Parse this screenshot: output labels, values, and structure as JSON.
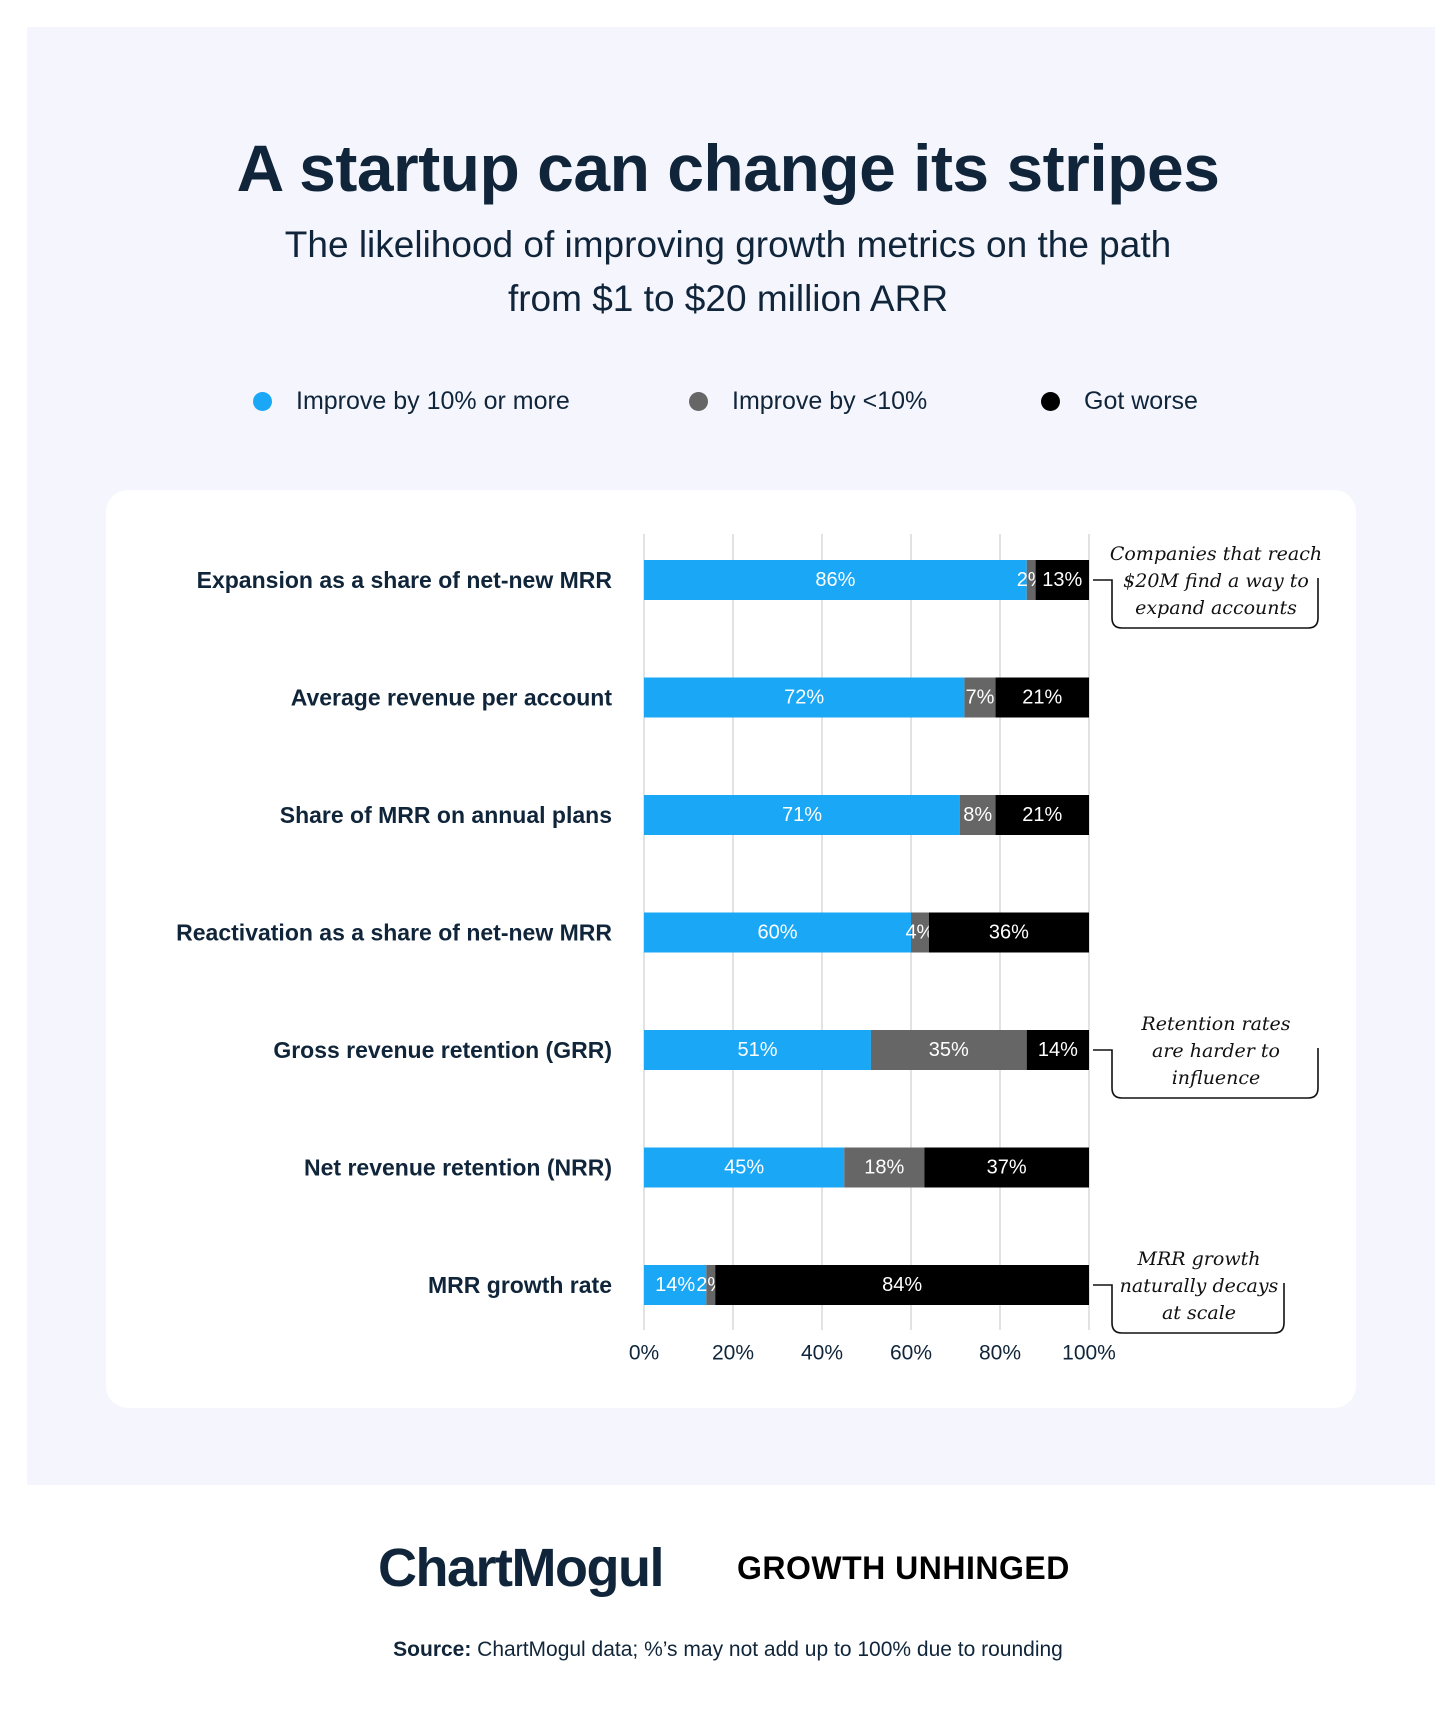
{
  "title": "A startup can change its stripes",
  "subtitle_line1": "The likelihood of improving growth metrics on the path",
  "subtitle_line2": "from $1 to $20 million ARR",
  "legend": [
    {
      "label": "Improve by 10% or more",
      "color": "#1aa7f6"
    },
    {
      "label": "Improve by <10%",
      "color": "#666666"
    },
    {
      "label": "Got worse",
      "color": "#000000"
    }
  ],
  "chart_data": {
    "type": "bar",
    "orientation": "horizontal",
    "stacked": true,
    "categories": [
      "Expansion as a share of net-new MRR",
      "Average revenue per account",
      "Share of MRR on annual plans",
      "Reactivation as a share of net-new MRR",
      "Gross revenue retention (GRR)",
      "Net revenue retention (NRR)",
      "MRR growth rate"
    ],
    "series": [
      {
        "name": "Improve by 10% or more",
        "color": "#1aa7f6",
        "values": [
          86,
          72,
          71,
          60,
          51,
          45,
          14
        ]
      },
      {
        "name": "Improve by <10%",
        "color": "#666666",
        "values": [
          2,
          7,
          8,
          4,
          35,
          18,
          2
        ]
      },
      {
        "name": "Got worse",
        "color": "#000000",
        "values": [
          13,
          21,
          21,
          36,
          14,
          37,
          84
        ]
      }
    ],
    "xlim": [
      0,
      100
    ],
    "xticks": [
      "0%",
      "20%",
      "40%",
      "60%",
      "80%",
      "100%"
    ],
    "xtick_values": [
      0,
      20,
      40,
      60,
      80,
      100
    ],
    "grid": true,
    "annotations": [
      {
        "row": 0,
        "lines": [
          "Companies that reach",
          "$20M find a way to",
          "expand accounts"
        ]
      },
      {
        "row": 4,
        "lines": [
          "Retention rates",
          "are harder to",
          "influence"
        ]
      },
      {
        "row": 6,
        "lines": [
          "MRR growth",
          "naturally decays",
          "at scale"
        ]
      }
    ]
  },
  "footer": {
    "logo": "ChartMogul",
    "brand": "GROWTH UNHINGED",
    "source_label": "Source:",
    "source_text": " ChartMogul data; %’s may not add up to 100% due to rounding"
  }
}
